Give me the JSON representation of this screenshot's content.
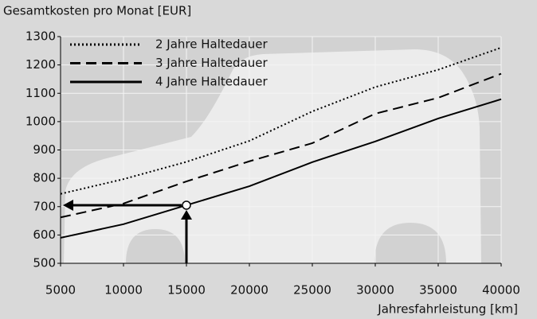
{
  "chart_data": {
    "type": "line",
    "title": "Gesamtkosten pro Monat [EUR]",
    "x_label": "Jahresfahrleistung [km]",
    "x": [
      5000,
      10000,
      15000,
      20000,
      25000,
      30000,
      35000,
      40000
    ],
    "series": [
      {
        "name": "2 Jahre Haltedauer",
        "color": "#000000",
        "style": "dotted",
        "values": [
          745,
          797,
          858,
          932,
          1036,
          1122,
          1183,
          1261
        ]
      },
      {
        "name": "3 Jahre Haltedauer",
        "color": "#000000",
        "style": "dashed",
        "values": [
          662,
          711,
          789,
          860,
          924,
          1028,
          1084,
          1169
        ]
      },
      {
        "name": "4 Jahre Haltedauer",
        "color": "#000000",
        "style": "solid",
        "values": [
          590,
          638,
          705,
          772,
          857,
          930,
          1011,
          1079
        ]
      }
    ],
    "xlim": [
      5000,
      40000
    ],
    "xticks": [
      5000,
      10000,
      15000,
      20000,
      25000,
      30000,
      35000,
      40000
    ],
    "ylim": [
      500,
      1300
    ],
    "yticks": [
      500,
      600,
      700,
      800,
      900,
      1000,
      1100,
      1200,
      1300
    ],
    "grid": true,
    "legend": "top-left"
  }
}
